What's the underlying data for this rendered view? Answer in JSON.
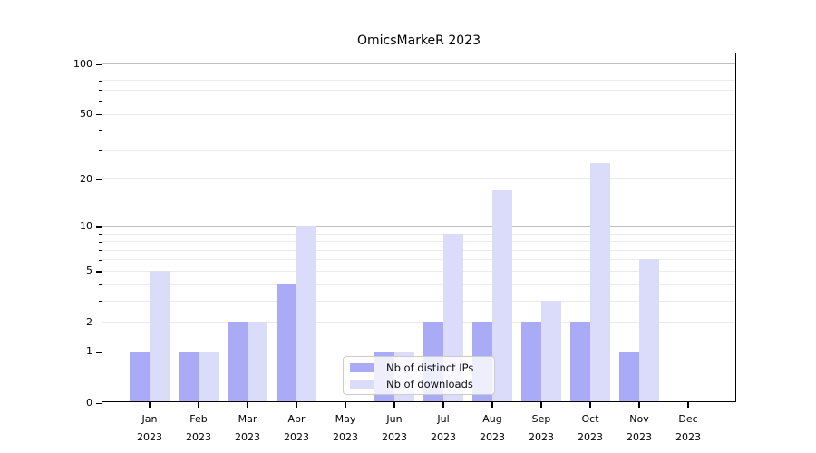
{
  "title": "OmicsMarkeR 2023",
  "chart_data": {
    "type": "bar",
    "title": "OmicsMarkeR 2023",
    "categories": [
      "Jan 2023",
      "Feb 2023",
      "Mar 2023",
      "Apr 2023",
      "May 2023",
      "Jun 2023",
      "Jul 2023",
      "Aug 2023",
      "Sep 2023",
      "Oct 2023",
      "Nov 2023",
      "Dec 2023"
    ],
    "series": [
      {
        "name": "Nb of distinct IPs",
        "color": "#a9abf6",
        "values": [
          1,
          1,
          2,
          4,
          0,
          1,
          2,
          2,
          2,
          2,
          1,
          0
        ]
      },
      {
        "name": "Nb of downloads",
        "color": "#dbdcfa",
        "values": [
          5,
          1,
          2,
          10,
          0,
          1,
          9,
          17,
          3,
          25,
          6,
          0
        ]
      }
    ],
    "xlabel": "",
    "ylabel": "",
    "yscale": "log1p",
    "ylim": [
      0,
      116
    ],
    "ytick_labels": [
      "0",
      "1",
      "2",
      "5",
      "10",
      "20",
      "50",
      "100"
    ],
    "ytick_values": [
      0,
      1,
      2,
      5,
      10,
      20,
      50,
      100
    ],
    "grid": {
      "major_lines": [
        1,
        10,
        100
      ],
      "minor_lines": [
        2,
        3,
        4,
        5,
        6,
        7,
        8,
        9,
        20,
        30,
        40,
        50,
        60,
        70,
        80,
        90
      ],
      "major_color": "#c0c0c0",
      "minor_color": "#ebebeb"
    },
    "legend": {
      "position": "inside-bottom-center",
      "items": [
        "Nb of distinct IPs",
        "Nb of downloads"
      ]
    },
    "axis_color": "#000000",
    "background_color": "#ffffff"
  }
}
